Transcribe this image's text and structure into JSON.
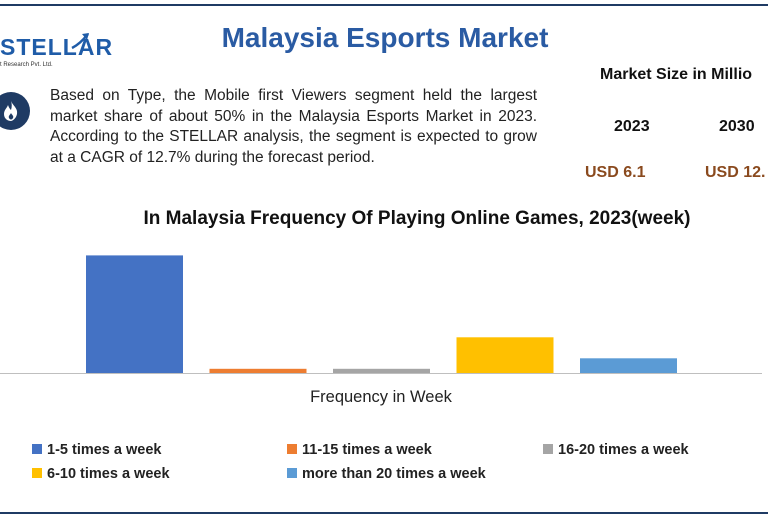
{
  "logo": {
    "text": "STELLAR",
    "subtitle": "t Research Pvt. Ltd."
  },
  "header": {
    "title": "Malaysia Esports Market"
  },
  "summary": "Based on Type, the Mobile first Viewers segment held the largest market share of about 50% in the Malaysia Esports Market in 2023. According to the STELLAR analysis, the segment is expected to grow at a CAGR of 12.7% during the forecast period.",
  "market_size": {
    "heading": "Market Size in Millio",
    "years": [
      "2023",
      "2030"
    ],
    "values": [
      "USD 6.1",
      "USD 12."
    ]
  },
  "chart_data": {
    "type": "bar",
    "title": "In Malaysia Frequency Of Playing Online Games, 2023(week)",
    "xlabel": "Frequency in Week",
    "ylabel": "",
    "categories": [
      "1-5 times a week",
      "11-15 times a week",
      "16-20 times a week",
      "6-10 times a week",
      "more than 20 times a week"
    ],
    "values": [
      56,
      2,
      2,
      17,
      7
    ],
    "ylim": [
      0,
      60
    ],
    "colors": [
      "#4472c4",
      "#ed7d31",
      "#a5a5a5",
      "#ffc000",
      "#5b9bd5"
    ],
    "grid": false,
    "legend": "bottom"
  }
}
